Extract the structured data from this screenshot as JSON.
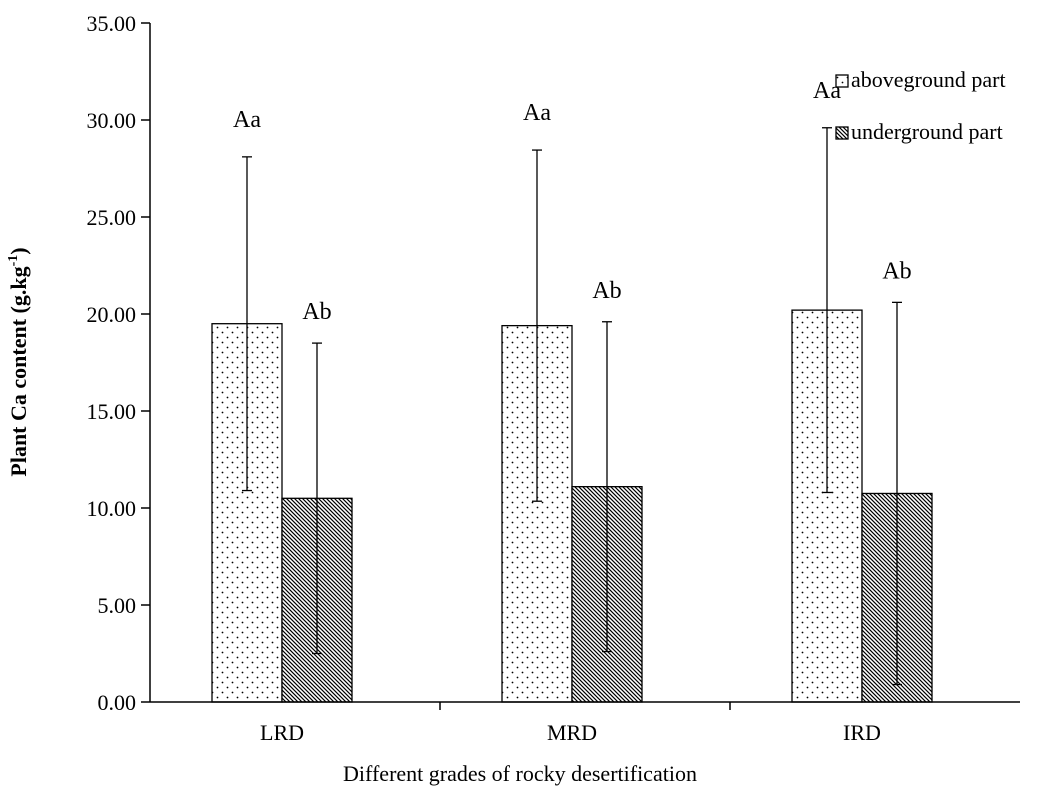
{
  "chart_data": {
    "type": "bar",
    "title": "",
    "xlabel": "Different grades of rocky desertification",
    "ylabel": {
      "main": "Plant Ca content (g.kg",
      "superscript": "-1",
      "close": ")"
    },
    "categories": [
      "LRD",
      "MRD",
      "IRD"
    ],
    "ylim": [
      0,
      35
    ],
    "yticks": [
      0,
      5,
      10,
      15,
      20,
      25,
      30,
      35
    ],
    "ytick_labels": [
      "0.00",
      "5.00",
      "10.00",
      "15.00",
      "20.00",
      "25.00",
      "30.00",
      "35.00"
    ],
    "grid": false,
    "legend_position": "top-right",
    "series": [
      {
        "name": "aboveground part",
        "pattern": "dots",
        "values": [
          19.5,
          19.4,
          20.2
        ],
        "errors": [
          8.6,
          9.05,
          9.4
        ],
        "labels": [
          "Aa",
          "Aa",
          "Aa"
        ]
      },
      {
        "name": "underground part",
        "pattern": "hatch",
        "values": [
          10.5,
          11.1,
          10.75
        ],
        "errors": [
          8.0,
          8.5,
          9.85
        ],
        "labels": [
          "Ab",
          "Ab",
          "Ab"
        ]
      }
    ],
    "colors": {
      "axis": "#000000",
      "bar_fill": "#ffffff",
      "pattern": "#000000"
    }
  }
}
